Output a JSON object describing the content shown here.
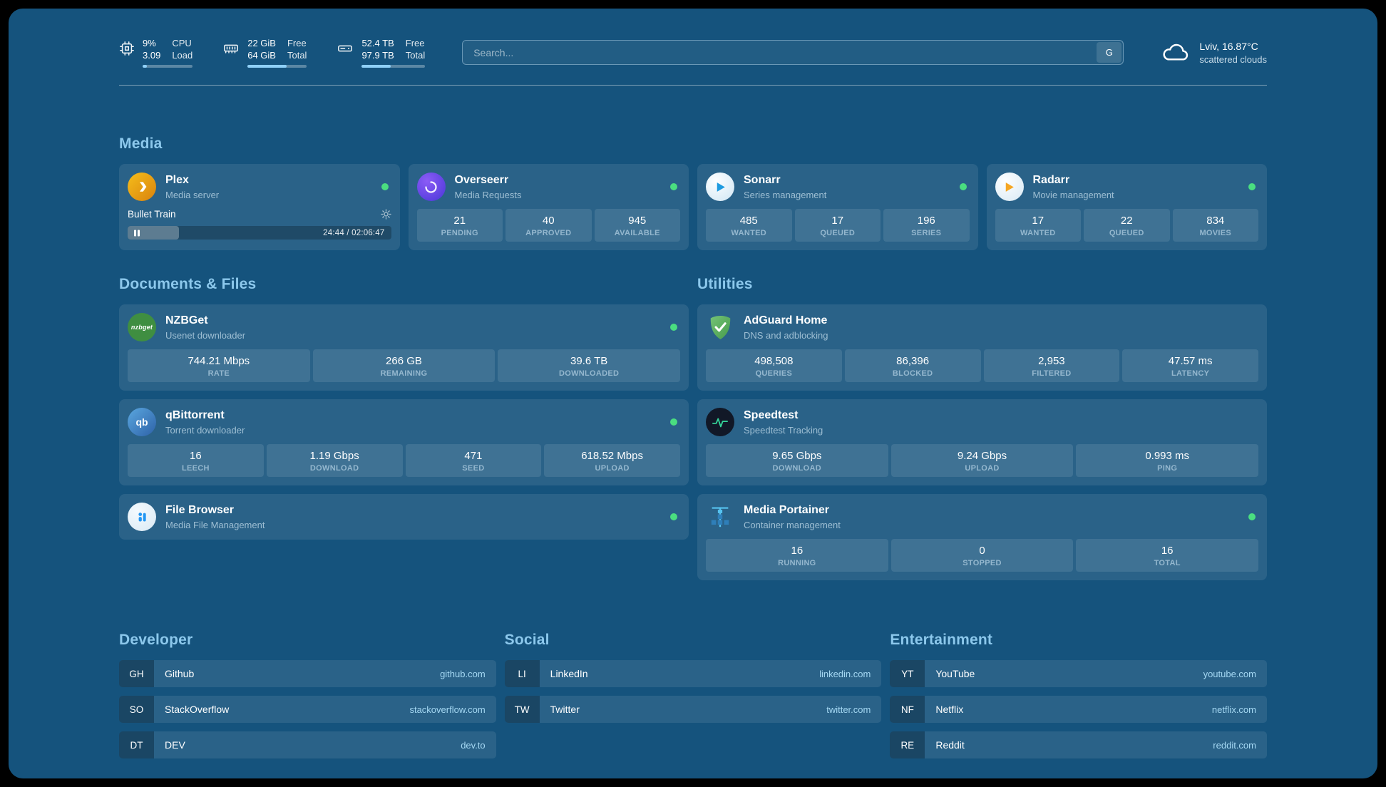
{
  "header": {
    "cpu": {
      "value": "9%",
      "load": "3.09",
      "label1": "CPU",
      "label2": "Load",
      "percent": 9
    },
    "memory": {
      "free": "22 GiB",
      "total": "64 GiB",
      "label1": "Free",
      "label2": "Total",
      "percent": 66
    },
    "disk": {
      "free": "52.4 TB",
      "total": "97.9 TB",
      "label1": "Free",
      "label2": "Total",
      "percent": 46
    },
    "search": {
      "placeholder": "Search...",
      "provider": "G"
    },
    "weather": {
      "location": "Lviv, 16.87°C",
      "condition": "scattered clouds"
    }
  },
  "sections": {
    "media": {
      "title": "Media",
      "plex": {
        "name": "Plex",
        "desc": "Media server",
        "now_playing": "Bullet Train",
        "time": "24:44 / 02:06:47",
        "progress_percent": 19.5
      },
      "overseerr": {
        "name": "Overseerr",
        "desc": "Media Requests",
        "stats": [
          {
            "value": "21",
            "label": "PENDING"
          },
          {
            "value": "40",
            "label": "APPROVED"
          },
          {
            "value": "945",
            "label": "AVAILABLE"
          }
        ]
      },
      "sonarr": {
        "name": "Sonarr",
        "desc": "Series management",
        "stats": [
          {
            "value": "485",
            "label": "WANTED"
          },
          {
            "value": "17",
            "label": "QUEUED"
          },
          {
            "value": "196",
            "label": "SERIES"
          }
        ]
      },
      "radarr": {
        "name": "Radarr",
        "desc": "Movie management",
        "stats": [
          {
            "value": "17",
            "label": "WANTED"
          },
          {
            "value": "22",
            "label": "QUEUED"
          },
          {
            "value": "834",
            "label": "MOVIES"
          }
        ]
      }
    },
    "documents": {
      "title": "Documents & Files",
      "nzbget": {
        "name": "NZBGet",
        "desc": "Usenet downloader",
        "stats": [
          {
            "value": "744.21 Mbps",
            "label": "RATE"
          },
          {
            "value": "266 GB",
            "label": "REMAINING"
          },
          {
            "value": "39.6 TB",
            "label": "DOWNLOADED"
          }
        ]
      },
      "qbittorrent": {
        "name": "qBittorrent",
        "desc": "Torrent downloader",
        "stats": [
          {
            "value": "16",
            "label": "LEECH"
          },
          {
            "value": "1.19 Gbps",
            "label": "DOWNLOAD"
          },
          {
            "value": "471",
            "label": "SEED"
          },
          {
            "value": "618.52 Mbps",
            "label": "UPLOAD"
          }
        ]
      },
      "filebrowser": {
        "name": "File Browser",
        "desc": "Media File Management"
      }
    },
    "utilities": {
      "title": "Utilities",
      "adguard": {
        "name": "AdGuard Home",
        "desc": "DNS and adblocking",
        "stats": [
          {
            "value": "498,508",
            "label": "QUERIES"
          },
          {
            "value": "86,396",
            "label": "BLOCKED"
          },
          {
            "value": "2,953",
            "label": "FILTERED"
          },
          {
            "value": "47.57 ms",
            "label": "LATENCY"
          }
        ]
      },
      "speedtest": {
        "name": "Speedtest",
        "desc": "Speedtest Tracking",
        "stats": [
          {
            "value": "9.65 Gbps",
            "label": "DOWNLOAD"
          },
          {
            "value": "9.24 Gbps",
            "label": "UPLOAD"
          },
          {
            "value": "0.993 ms",
            "label": "PING"
          }
        ]
      },
      "portainer": {
        "name": "Media Portainer",
        "desc": "Container management",
        "stats": [
          {
            "value": "16",
            "label": "RUNNING"
          },
          {
            "value": "0",
            "label": "STOPPED"
          },
          {
            "value": "16",
            "label": "TOTAL"
          }
        ]
      }
    }
  },
  "bookmarks": {
    "developer": {
      "title": "Developer",
      "items": [
        {
          "abbr": "GH",
          "name": "Github",
          "url": "github.com"
        },
        {
          "abbr": "SO",
          "name": "StackOverflow",
          "url": "stackoverflow.com"
        },
        {
          "abbr": "DT",
          "name": "DEV",
          "url": "dev.to"
        }
      ]
    },
    "social": {
      "title": "Social",
      "items": [
        {
          "abbr": "LI",
          "name": "LinkedIn",
          "url": "linkedin.com"
        },
        {
          "abbr": "TW",
          "name": "Twitter",
          "url": "twitter.com"
        }
      ]
    },
    "entertainment": {
      "title": "Entertainment",
      "items": [
        {
          "abbr": "YT",
          "name": "YouTube",
          "url": "youtube.com"
        },
        {
          "abbr": "NF",
          "name": "Netflix",
          "url": "netflix.com"
        },
        {
          "abbr": "RE",
          "name": "Reddit",
          "url": "reddit.com"
        }
      ]
    }
  },
  "icons": {
    "nzbget_label": "nzbget",
    "qbittorrent_label": "qb"
  },
  "colors": {
    "background": "#15537D",
    "card": "rgba(255,255,255,0.09)",
    "accent": "#8CC8EC",
    "status_online": "#4ADE80"
  }
}
